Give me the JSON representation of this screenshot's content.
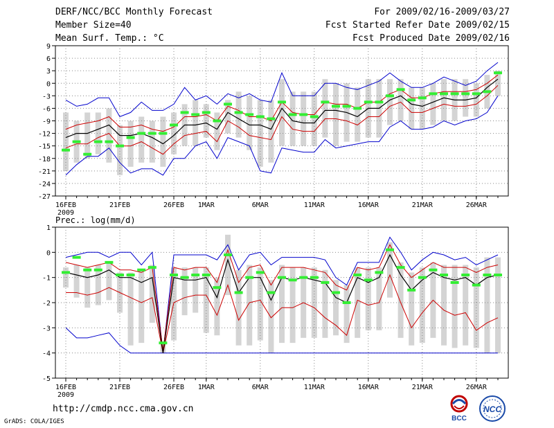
{
  "header": {
    "title": "DERF/NCC/BCC Monthly Forecast",
    "member_size": "Member Size=40",
    "variable": "Mean Surf. Temp.: °C",
    "period": "For 2009/02/16-2009/03/27",
    "started": "Fcst Started Refer Date 2009/02/15",
    "produced": "Fcst Produced Date 2009/02/16"
  },
  "footer": {
    "url": "http://cmdp.ncc.cma.gov.cn",
    "credit": "GrADS: COLA/IGES",
    "logo_bcc": "BCC",
    "logo_ncc": "NCC"
  },
  "colors": {
    "ensemble_mean": "#000000",
    "std_band": "#cc0000",
    "min_max": "#0000cc",
    "member_median": "#33ee33",
    "spread_bar": "#d4d4d4",
    "grid": "#888888"
  },
  "chart_data": [
    {
      "type": "line",
      "title": "Mean Surf. Temp.: °C",
      "x_tick_labels": [
        "16FEB",
        "21FEB",
        "26FEB",
        "1MAR",
        "6MAR",
        "11MAR",
        "16MAR",
        "21MAR",
        "26MAR"
      ],
      "x_tick_days": [
        1,
        6,
        11,
        14,
        19,
        24,
        29,
        34,
        39
      ],
      "x_year_label": "2009",
      "ylim": [
        -27,
        9
      ],
      "yticks": [
        -27,
        -24,
        -21,
        -18,
        -15,
        -12,
        -9,
        -6,
        -3,
        0,
        3,
        6,
        9
      ],
      "series": [
        {
          "name": "mean",
          "values": [
            -13,
            -12,
            -12,
            -11,
            -10,
            -12.5,
            -12.5,
            -12,
            -13,
            -14.5,
            -12.5,
            -10,
            -10,
            -9.5,
            -11,
            -7,
            -8.5,
            -10,
            -10,
            -11,
            -6,
            -9,
            -9.5,
            -9.5,
            -6.5,
            -6.5,
            -7,
            -8,
            -6,
            -6,
            -4,
            -3,
            -5,
            -5.5,
            -4.5,
            -3.5,
            -4,
            -4,
            -3.5,
            -1,
            1
          ]
        },
        {
          "name": "mean + std",
          "values": [
            -11,
            -10,
            -9.5,
            -9,
            -8,
            -10.5,
            -10.5,
            -10,
            -11,
            -11.5,
            -10.5,
            -8,
            -8,
            -7.5,
            -9,
            -5.5,
            -6.5,
            -8,
            -8,
            -9,
            -4.5,
            -7,
            -7.5,
            -7.5,
            -4.5,
            -5,
            -5,
            -6,
            -4.5,
            -4.5,
            -2.5,
            -1.5,
            -3.5,
            -3.5,
            -2.5,
            -2,
            -2,
            -2,
            -1.5,
            0,
            2
          ]
        },
        {
          "name": "mean - std",
          "values": [
            -15.5,
            -14.5,
            -14.5,
            -13,
            -12,
            -15,
            -15,
            -14,
            -15.5,
            -17,
            -14.5,
            -12.5,
            -12,
            -11.5,
            -14,
            -9,
            -10.5,
            -12.5,
            -13,
            -13.5,
            -8,
            -11,
            -11.5,
            -11.5,
            -8.5,
            -8.5,
            -9,
            -10,
            -8,
            -8,
            -5.5,
            -4.5,
            -7,
            -7,
            -6,
            -5,
            -5.5,
            -5.5,
            -5,
            -3,
            -0.5
          ]
        },
        {
          "name": "max",
          "values": [
            -4,
            -5.5,
            -5,
            -3.5,
            -3.5,
            -8,
            -7,
            -4.5,
            -6.5,
            -6.5,
            -5,
            -1,
            -4,
            -3,
            -5,
            -2.5,
            -3.5,
            -2.5,
            -4,
            -4.5,
            2.5,
            -3,
            -3,
            -3,
            0,
            0,
            -1,
            -1.5,
            -0.5,
            0.5,
            2.5,
            0.5,
            -1,
            -1,
            0,
            1.5,
            0.5,
            -0.5,
            0.5,
            3,
            5
          ]
        },
        {
          "name": "min",
          "values": [
            -22,
            -19.5,
            -17.5,
            -17.5,
            -15.5,
            -19,
            -21.5,
            -20.5,
            -20.5,
            -22,
            -18,
            -18,
            -15,
            -14,
            -18,
            -13,
            -14,
            -15,
            -21,
            -21.5,
            -15.5,
            -16,
            -16.5,
            -16.5,
            -13.5,
            -15.5,
            -15,
            -14.5,
            -14,
            -14,
            -10.5,
            -9,
            -11,
            -11,
            -10.5,
            -9,
            -10,
            -9,
            -8.5,
            -7,
            -3
          ]
        },
        {
          "name": "median",
          "values": [
            -16,
            -14,
            -17,
            -14,
            -14,
            -15,
            -13,
            -12,
            -12,
            -12,
            -10,
            -7,
            -7.5,
            -7,
            -9,
            -5,
            -7,
            -7.5,
            -8,
            -8.5,
            -4.5,
            -7.5,
            -7.5,
            -8,
            -4.5,
            -5.5,
            -5.5,
            -6,
            -4.5,
            -4.5,
            -3,
            -1.5,
            -4,
            -3.5,
            -2.5,
            -2.5,
            -2.5,
            -2.5,
            -2.5,
            -2,
            2.5
          ]
        },
        {
          "name": "spread_top",
          "values": [
            -7,
            -9,
            -7,
            -7,
            -6,
            -10,
            -9,
            -8,
            -9,
            -8,
            -7,
            -5,
            -4,
            -5,
            -7,
            -4,
            -2,
            -3,
            -4,
            -4,
            1,
            -2,
            -2,
            -2,
            1,
            0,
            0,
            -1,
            1,
            1,
            1,
            1,
            -1,
            -1,
            0,
            1,
            1,
            1,
            0,
            2,
            3
          ]
        },
        {
          "name": "spread_bottom",
          "values": [
            -21,
            -19,
            -18,
            -17,
            -19,
            -22,
            -20,
            -19,
            -19,
            -20,
            -17,
            -15,
            -15,
            -13,
            -16,
            -12,
            -13,
            -16,
            -20,
            -19,
            -15,
            -15,
            -15,
            -15,
            -13,
            -15,
            -14,
            -14,
            -13,
            -13,
            -10,
            -9,
            -11,
            -11,
            -10,
            -9,
            -9,
            -8,
            -8,
            -6,
            -3
          ]
        }
      ]
    },
    {
      "type": "line",
      "title": "Prec.: log(mm/d)",
      "x_tick_labels": [
        "16FEB",
        "21FEB",
        "26FEB",
        "1MAR",
        "6MAR",
        "11MAR",
        "16MAR",
        "21MAR",
        "26MAR"
      ],
      "x_tick_days": [
        1,
        6,
        11,
        14,
        19,
        24,
        29,
        34,
        39
      ],
      "x_year_label": "2009",
      "ylim": [
        -5,
        1
      ],
      "yticks": [
        -5,
        -4,
        -3,
        -2,
        -1,
        0,
        1
      ],
      "series": [
        {
          "name": "mean",
          "values": [
            -0.8,
            -0.9,
            -1,
            -0.9,
            -0.7,
            -1,
            -1,
            -1.2,
            -1,
            -4,
            -1,
            -1.1,
            -1.1,
            -1,
            -1.8,
            -0.3,
            -1.6,
            -1,
            -1,
            -1.9,
            -1,
            -1.1,
            -1,
            -1.1,
            -1.2,
            -1.8,
            -2,
            -1,
            -1.2,
            -1,
            -0.1,
            -0.9,
            -1.5,
            -1.1,
            -0.8,
            -1,
            -1.1,
            -1,
            -1.3,
            -1,
            -0.9
          ]
        },
        {
          "name": "mean + std",
          "values": [
            -0.4,
            -0.5,
            -0.6,
            -0.5,
            -0.4,
            -0.7,
            -0.7,
            -0.8,
            -0.6,
            -3.9,
            -0.6,
            -0.7,
            -0.6,
            -0.6,
            -1.2,
            0.1,
            -1.2,
            -0.6,
            -0.5,
            -1.3,
            -0.6,
            -0.6,
            -0.6,
            -0.7,
            -0.8,
            -1.3,
            -1.5,
            -0.6,
            -0.7,
            -0.6,
            0.3,
            -0.5,
            -1,
            -0.7,
            -0.4,
            -0.6,
            -0.6,
            -0.6,
            -0.8,
            -0.6,
            -0.5
          ]
        },
        {
          "name": "mean - std",
          "values": [
            -1.6,
            -1.6,
            -1.7,
            -1.6,
            -1.4,
            -1.6,
            -1.8,
            -2,
            -1.8,
            -4,
            -2,
            -1.8,
            -1.7,
            -1.7,
            -2.5,
            -1.3,
            -2.7,
            -2,
            -1.9,
            -2.6,
            -2.2,
            -2.2,
            -2,
            -2.2,
            -2.6,
            -2.9,
            -3.3,
            -1.9,
            -2.1,
            -2,
            -0.9,
            -2,
            -3,
            -2.4,
            -1.9,
            -2.3,
            -2.5,
            -2.4,
            -3.1,
            -2.8,
            -2.6
          ]
        },
        {
          "name": "max",
          "values": [
            -0.2,
            -0.1,
            0,
            0,
            -0.2,
            0,
            0,
            -0.5,
            0,
            -4,
            -0.1,
            -0.1,
            -0.1,
            -0.1,
            -0.3,
            0.3,
            -0.7,
            -0.1,
            0,
            -0.5,
            -0.2,
            -0.2,
            -0.2,
            -0.2,
            -0.3,
            -1,
            -1.3,
            -0.4,
            -0.4,
            -0.4,
            0.6,
            0,
            -0.7,
            -0.3,
            0,
            -0.1,
            -0.3,
            -0.2,
            -0.5,
            -0.3,
            -0.1
          ]
        },
        {
          "name": "min",
          "values": [
            -3,
            -3.4,
            -3.4,
            -3.3,
            -3.2,
            -3.7,
            -4,
            -4,
            -4,
            -4,
            -4,
            -4,
            -4,
            -4,
            -4,
            -4,
            -4,
            -4,
            -4,
            -4,
            -4,
            -4,
            -4,
            -4,
            -4,
            -4,
            -4,
            -4,
            -4,
            -4,
            -4,
            -4,
            -4,
            -4,
            -4,
            -4,
            -4,
            -4,
            -4,
            -4,
            -4
          ]
        },
        {
          "name": "median",
          "values": [
            -0.8,
            -0.2,
            -0.7,
            -0.7,
            -0.4,
            -0.9,
            -0.9,
            -0.7,
            -0.6,
            -3.6,
            -0.9,
            -1,
            -0.9,
            -0.9,
            -1.4,
            -0.1,
            -1.6,
            -1,
            -0.8,
            -1.6,
            -1,
            -1.1,
            -1,
            -1,
            -1.2,
            -1.6,
            -2,
            -0.9,
            -1.1,
            -0.8,
            0.1,
            -0.6,
            -1.5,
            -1,
            -0.7,
            -0.9,
            -1.2,
            -0.9,
            -1.3,
            -0.9,
            -0.9
          ]
        },
        {
          "name": "spread_top",
          "values": [
            -0.6,
            -0.5,
            -0.6,
            -0.5,
            -0.4,
            -0.8,
            -0.8,
            -0.7,
            -0.5,
            -3.6,
            -0.6,
            -0.6,
            -0.6,
            -0.6,
            -1,
            0.7,
            -0.7,
            -0.5,
            -0.6,
            -1.1,
            -0.5,
            -0.6,
            -0.6,
            -0.6,
            -0.7,
            -1.1,
            -1.3,
            -0.6,
            -0.6,
            -0.6,
            0.4,
            -0.4,
            -0.8,
            -0.6,
            -0.4,
            -0.5,
            -0.5,
            -0.5,
            -0.6,
            -0.2,
            -0.2
          ]
        },
        {
          "name": "spread_bottom",
          "values": [
            -1.4,
            -1.8,
            -2.2,
            -2.1,
            -1.9,
            -2.4,
            -3.7,
            -3.6,
            -2.8,
            -4,
            -3.5,
            -2.5,
            -2.4,
            -3.2,
            -3.3,
            -1.7,
            -3.7,
            -3.7,
            -3.5,
            -4,
            -3.6,
            -3.6,
            -3.4,
            -3.4,
            -3.4,
            -3.3,
            -3.6,
            -3.4,
            -3.1,
            -3.1,
            -1.8,
            -3.4,
            -3.7,
            -3.6,
            -3.4,
            -3.7,
            -3.8,
            -3.7,
            -3.8,
            -4,
            -4
          ]
        }
      ]
    }
  ]
}
